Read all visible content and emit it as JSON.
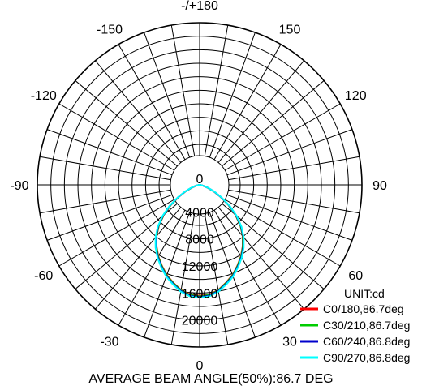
{
  "chart_data": {
    "type": "polar",
    "unit": "UNIT:cd",
    "caption": "AVERAGE BEAM ANGLE(50%):86.7 DEG",
    "radial_max": 24000,
    "radial_ticks": [
      0,
      4000,
      8000,
      12000,
      16000,
      20000
    ],
    "radial_tick_labels": [
      "0",
      "4000",
      "8000",
      "12000",
      "16000",
      "20000"
    ],
    "angle_labels": [
      {
        "angle": 0,
        "text": "0"
      },
      {
        "angle": 30,
        "text": "30"
      },
      {
        "angle": 60,
        "text": "60"
      },
      {
        "angle": 90,
        "text": "90"
      },
      {
        "angle": 120,
        "text": "120"
      },
      {
        "angle": 150,
        "text": "150"
      },
      {
        "angle": 180,
        "text": "-/+180"
      },
      {
        "angle": -150,
        "text": "-150"
      },
      {
        "angle": -120,
        "text": "-120"
      },
      {
        "angle": -90,
        "text": "-90"
      },
      {
        "angle": -60,
        "text": "-60"
      },
      {
        "angle": -30,
        "text": "-30"
      }
    ],
    "angles": [
      0,
      5,
      10,
      15,
      20,
      25,
      30,
      35,
      40,
      45,
      50,
      55,
      60,
      65,
      70,
      75,
      80,
      85,
      90
    ],
    "series": [
      {
        "name": "C0/180,86.7deg",
        "color": "#ff0000",
        "values": [
          16400,
          16300,
          15800,
          15000,
          14200,
          13200,
          12200,
          11100,
          9900,
          8500,
          6900,
          5200,
          3600,
          2300,
          1300,
          600,
          200,
          60,
          0
        ]
      },
      {
        "name": "C30/210,86.7deg",
        "color": "#00cc00",
        "values": [
          16500,
          16350,
          15850,
          15050,
          14250,
          13250,
          12250,
          11150,
          9950,
          8550,
          6950,
          5250,
          3650,
          2350,
          1350,
          650,
          220,
          60,
          0
        ]
      },
      {
        "name": "C60/240,86.8deg",
        "color": "#0000cc",
        "values": [
          16600,
          16450,
          15950,
          15150,
          14350,
          13350,
          12350,
          11250,
          10050,
          8650,
          7050,
          5350,
          3700,
          2400,
          1400,
          680,
          230,
          70,
          0
        ]
      },
      {
        "name": "C90/270,86.8deg",
        "color": "#00ffff",
        "values": [
          16700,
          16550,
          16050,
          15250,
          14450,
          13450,
          12450,
          11350,
          10150,
          8750,
          7150,
          5450,
          3750,
          2450,
          1450,
          700,
          240,
          70,
          0
        ]
      }
    ]
  }
}
